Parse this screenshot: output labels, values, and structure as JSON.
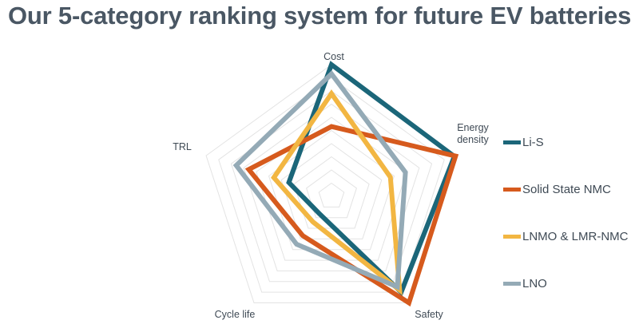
{
  "title": "Our 5-category ranking system for future EV batteries",
  "chart_data": {
    "type": "radar",
    "title": "Our 5-category ranking system for future EV batteries",
    "axes": [
      "Cost",
      "Energy density",
      "Safety",
      "Cycle life",
      "TRL"
    ],
    "axis_label_lines": {
      "Cost": [
        "Cost"
      ],
      "Energy density": [
        "Energy",
        "density"
      ],
      "Safety": [
        "Safety"
      ],
      "Cycle life": [
        "Cycle life"
      ],
      "TRL": [
        "TRL"
      ]
    },
    "range": [
      0,
      10
    ],
    "grid_rings": 10,
    "series": [
      {
        "name": "Li-S",
        "color": "#1b6679",
        "values": [
          10,
          9.8,
          9.0,
          1.6,
          3.4
        ]
      },
      {
        "name": "Solid State NMC",
        "color": "#d65a1d",
        "values": [
          5.3,
          9.9,
          10,
          3.7,
          6.6
        ]
      },
      {
        "name": "LNMO & LMR-NMC",
        "color": "#f2b642",
        "values": [
          7.8,
          4.7,
          8.8,
          2.4,
          4.6
        ]
      },
      {
        "name": "LNO",
        "color": "#94aab6",
        "values": [
          9.3,
          5.9,
          8.5,
          4.5,
          7.6
        ]
      }
    ],
    "legend_position": "right"
  }
}
